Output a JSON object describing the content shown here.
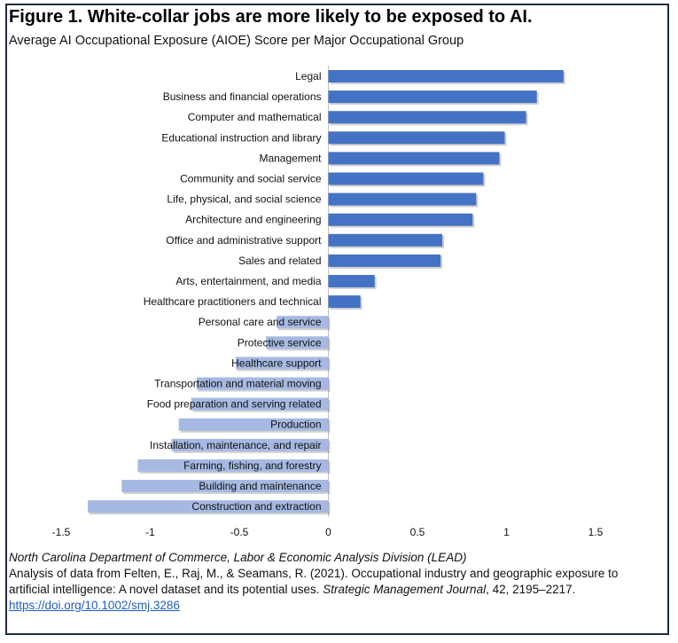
{
  "chart_data": {
    "type": "bar",
    "orientation": "horizontal",
    "title": "Figure 1. White-collar jobs are more likely to be exposed to AI.",
    "subtitle": "Average AI Occupational Exposure (AIOE) Score per Major Occupational Group",
    "categories": [
      "Legal",
      "Business and financial operations",
      "Computer and mathematical",
      "Educational instruction and library",
      "Management",
      "Community and social service",
      "Life, physical, and social science",
      "Architecture and engineering",
      "Office and administrative support",
      "Sales and related",
      "Arts, entertainment, and media",
      "Healthcare practitioners and technical",
      "Personal care and service",
      "Protective service",
      "Healthcare support",
      "Transportation and material moving",
      "Food preparation and serving related",
      "Production",
      "Installation, maintenance, and repair",
      "Farming, fishing, and forestry",
      "Building and maintenance",
      "Construction and extraction"
    ],
    "values": [
      1.32,
      1.17,
      1.11,
      0.99,
      0.96,
      0.87,
      0.83,
      0.81,
      0.64,
      0.63,
      0.26,
      0.18,
      -0.29,
      -0.35,
      -0.52,
      -0.74,
      -0.77,
      -0.84,
      -0.88,
      -1.07,
      -1.16,
      -1.35
    ],
    "xlim": [
      -1.5,
      1.5
    ],
    "xticks": [
      -1.5,
      -1,
      -0.5,
      0,
      0.5,
      1,
      1.5
    ],
    "xtick_labels": [
      "-1.5",
      "-1",
      "-0.5",
      "0",
      "0.5",
      "1",
      "1.5"
    ],
    "colors": {
      "positive": "#4472c4",
      "negative": "#a5b9e2"
    },
    "grid": false
  },
  "footer": {
    "source": "North Carolina Department of Commerce, Labor & Economic Analysis Division (LEAD)",
    "note_pre": "Analysis of data from Felten, E., Raj, M., & Seamans, R. (2021). Occupational industry and geographic exposure to artificial intelligence: A novel dataset and its potential uses. ",
    "journal": "Strategic Management Journal",
    "note_post": ", 42, 2195–2217.",
    "doi": "https://doi.org/10.1002/smj.3286"
  }
}
